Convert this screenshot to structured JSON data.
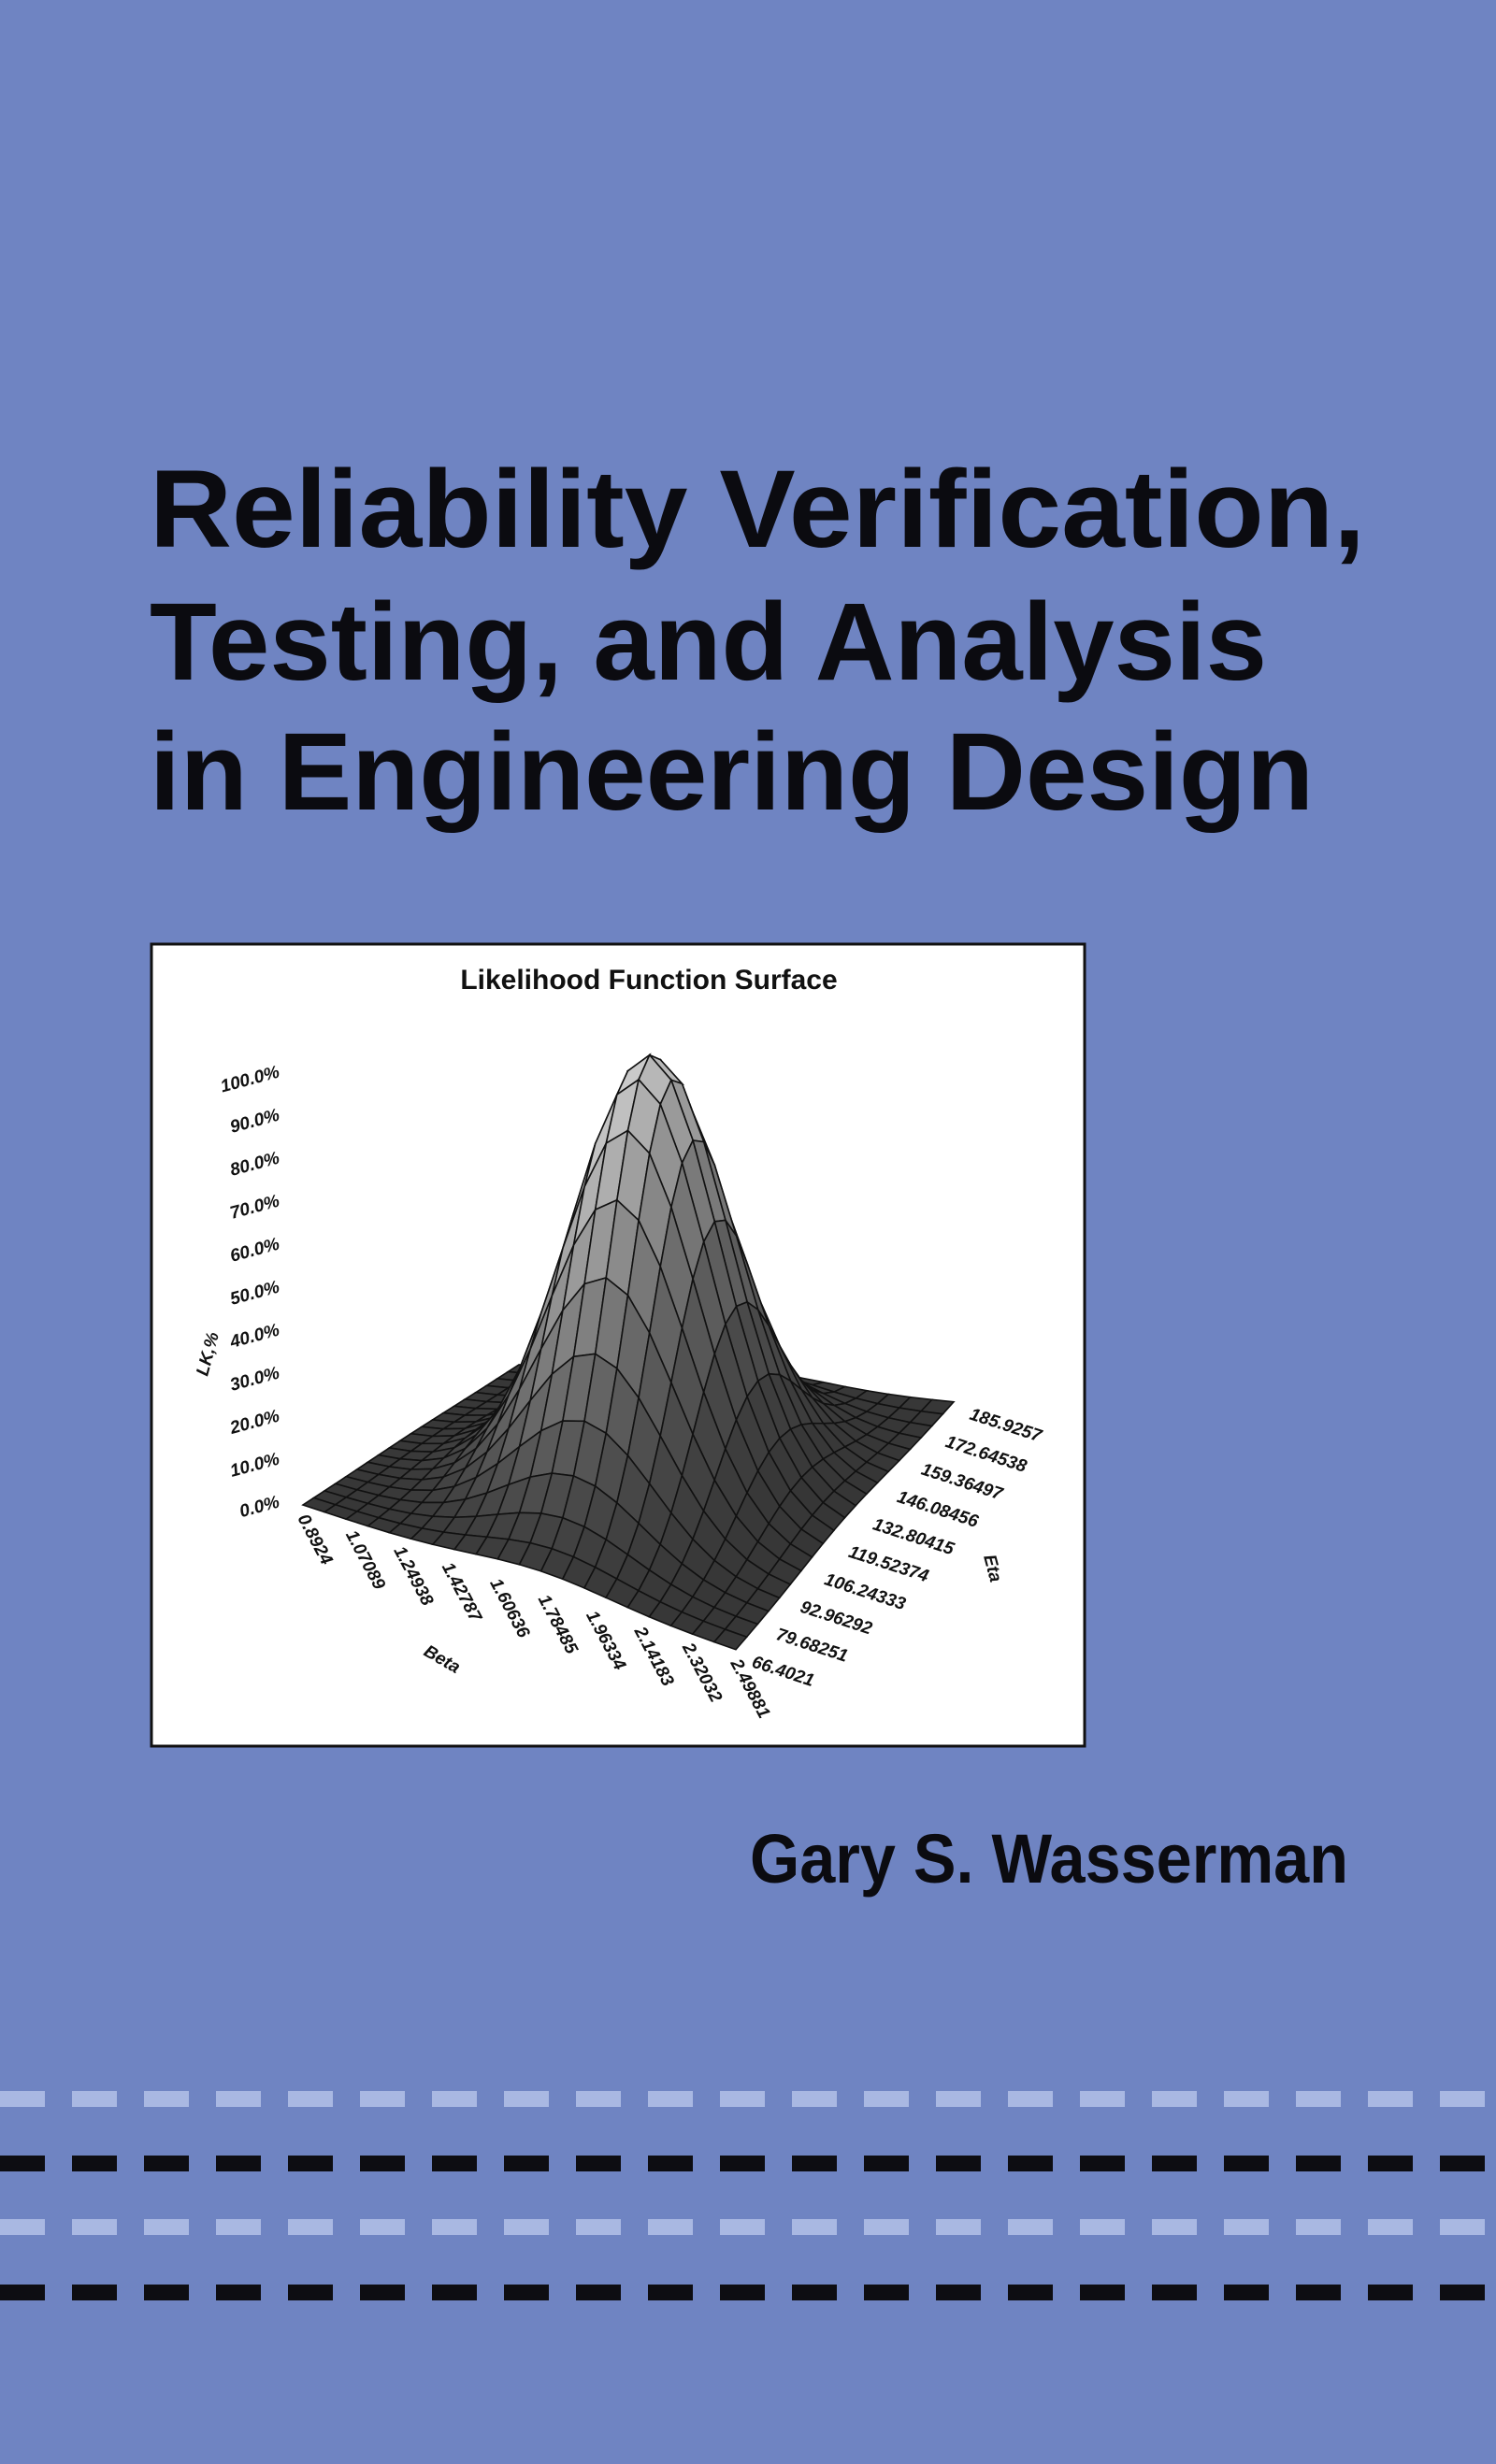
{
  "cover": {
    "title_lines": [
      "Reliability Verification,",
      "Testing, and Analysis",
      "in Engineering Design"
    ],
    "author": "Gary S. Wasserman"
  },
  "figure": {
    "title": "Likelihood Function Surface",
    "z_label": "LK,%",
    "x_label": "Beta",
    "y_label": "Eta",
    "z_ticks": [
      "0.0%",
      "10.0%",
      "20.0%",
      "30.0%",
      "40.0%",
      "50.0%",
      "60.0%",
      "70.0%",
      "80.0%",
      "90.0%",
      "100.0%"
    ],
    "x_ticks": [
      "0.8924",
      "1.07089",
      "1.24938",
      "1.42787",
      "1.60636",
      "1.78485",
      "1.96334",
      "2.14183",
      "2.32032",
      "2.49881"
    ],
    "y_ticks": [
      "66.4021",
      "79.68251",
      "92.96292",
      "106.24333",
      "119.52374",
      "132.80415",
      "146.08456",
      "159.36497",
      "172.64538",
      "185.9257"
    ]
  }
}
